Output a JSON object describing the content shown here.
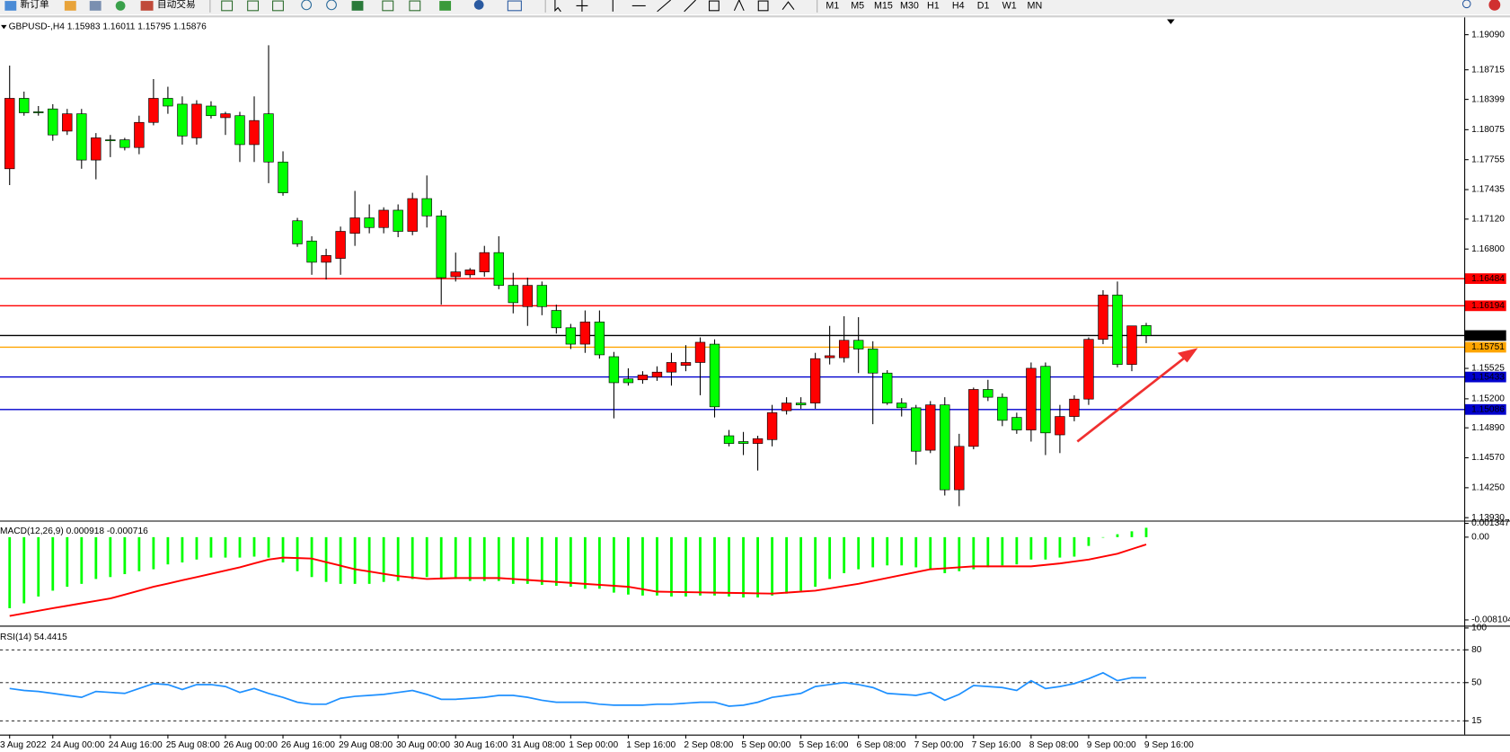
{
  "toolbar": {
    "buttons": [
      "新订单",
      "自动交易"
    ],
    "timeframes": [
      "M1",
      "M5",
      "M15",
      "M30",
      "H1",
      "H4",
      "D1",
      "W1",
      "MN"
    ]
  },
  "chart_data": [
    {
      "type": "candlestick",
      "title": "GBPUSD-,H4  1.15983 1.16011 1.15795 1.15876",
      "categories": [
        "3 Aug 2022",
        null,
        null,
        "24 Aug 00:00",
        null,
        null,
        null,
        "24 Aug 16:00",
        null,
        null,
        null,
        "25 Aug 08:00",
        null,
        null,
        null,
        "26 Aug 00:00",
        null,
        null,
        null,
        "26 Aug 16:00",
        null,
        null,
        null,
        "29 Aug 08:00",
        null,
        null,
        null,
        "30 Aug 00:00",
        null,
        null,
        null,
        "30 Aug 16:00",
        null,
        null,
        null,
        "31 Aug 08:00",
        null,
        null,
        null,
        "1 Sep 00:00",
        null,
        null,
        null,
        "1 Sep 16:00",
        null,
        null,
        null,
        "2 Sep 08:00",
        null,
        null,
        null,
        "5 Sep 00:00",
        null,
        null,
        null,
        "5 Sep 16:00",
        null,
        null,
        null,
        "6 Sep 08:00",
        null,
        null,
        null,
        "7 Sep 00:00",
        null,
        null,
        null,
        "7 Sep 16:00",
        null,
        null,
        null,
        "8 Sep 08:00",
        null,
        null,
        null,
        "9 Sep 00:00",
        null,
        null,
        null,
        "9 Sep 16:00"
      ],
      "open": [
        1.17658,
        1.1841,
        1.18266,
        1.18297,
        1.1806,
        1.18245,
        1.17751,
        1.17967,
        1.17967,
        1.17885,
        1.18153,
        1.1841,
        1.18348,
        1.17988,
        1.18328,
        1.18204,
        1.18225,
        1.17916,
        1.18245,
        1.1773,
        1.17102,
        1.16886,
        1.16659,
        1.167,
        1.16968,
        1.17133,
        1.1703,
        1.17215,
        1.16989,
        1.17339,
        1.17154,
        1.16505,
        1.16525,
        1.16556,
        1.16762,
        1.16412,
        1.16185,
        1.16412,
        1.16144,
        1.15959,
        1.15784,
        1.16021,
        1.1565,
        1.15413,
        1.15403,
        1.15433,
        1.15485,
        1.15557,
        1.15588,
        1.15784,
        1.14805,
        1.14743,
        1.14723,
        1.14764,
        1.15073,
        1.15155,
        1.15155,
        1.15639,
        1.15639,
        1.15825,
        1.15732,
        1.15475,
        1.15155,
        1.15104,
        1.14651,
        1.15135,
        1.14228,
        1.14692,
        1.153,
        1.15217,
        1.15001,
        1.14867,
        1.15547,
        1.14815,
        1.15011,
        1.15197,
        1.15835,
        1.16309,
        1.15567,
        1.15983
      ],
      "high": [
        1.1876,
        1.18482,
        1.18328,
        1.18348,
        1.18297,
        1.18297,
        1.18039,
        1.18019,
        1.17988,
        1.18225,
        1.18616,
        1.18534,
        1.18431,
        1.1839,
        1.18379,
        1.18266,
        1.18266,
        1.18431,
        1.18977,
        1.17844,
        1.17133,
        1.16937,
        1.16803,
        1.1704,
        1.17421,
        1.17277,
        1.17246,
        1.17277,
        1.17401,
        1.17586,
        1.17215,
        1.16762,
        1.16597,
        1.16834,
        1.16937,
        1.16546,
        1.16494,
        1.16453,
        1.16206,
        1.16,
        1.16144,
        1.16144,
        1.15701,
        1.15526,
        1.15495,
        1.15547,
        1.15691,
        1.15773,
        1.15856,
        1.15835,
        1.14867,
        1.14846,
        1.14805,
        1.15135,
        1.15217,
        1.15217,
        1.15691,
        1.15979,
        1.16082,
        1.16072,
        1.15815,
        1.15506,
        1.15207,
        1.15135,
        1.15176,
        1.15217,
        1.14826,
        1.1532,
        1.15403,
        1.15258,
        1.15052,
        1.15588,
        1.15588,
        1.15135,
        1.15238,
        1.15856,
        1.1636,
        1.16453,
        1.15979,
        1.16011
      ],
      "low": [
        1.17483,
        1.18225,
        1.18225,
        1.17957,
        1.18019,
        1.17658,
        1.17545,
        1.17782,
        1.17854,
        1.17813,
        1.18122,
        1.18245,
        1.17916,
        1.17916,
        1.18194,
        1.18019,
        1.1773,
        1.1773,
        1.17504,
        1.1737,
        1.16824,
        1.16525,
        1.16474,
        1.16525,
        1.16834,
        1.16968,
        1.16968,
        1.16927,
        1.16948,
        1.1703,
        1.16206,
        1.16453,
        1.16494,
        1.16505,
        1.16371,
        1.16113,
        1.15979,
        1.16093,
        1.15897,
        1.15732,
        1.15691,
        1.15629,
        1.14991,
        1.15341,
        1.15361,
        1.15392,
        1.15341,
        1.15495,
        1.15238,
        1.15001,
        1.14692,
        1.14599,
        1.14434,
        1.14692,
        1.15032,
        1.15094,
        1.15094,
        1.15567,
        1.15588,
        1.15475,
        1.14929,
        1.15135,
        1.15011,
        1.14496,
        1.1462,
        1.14167,
        1.14053,
        1.14661,
        1.15176,
        1.14908,
        1.14826,
        1.14743,
        1.14599,
        1.1462,
        1.1496,
        1.15135,
        1.15784,
        1.15536,
        1.15495,
        1.15795
      ],
      "close": [
        1.1841,
        1.18256,
        1.18256,
        1.18019,
        1.18245,
        1.17751,
        1.17988,
        1.17957,
        1.17885,
        1.18153,
        1.1841,
        1.18328,
        1.18008,
        1.18348,
        1.18225,
        1.18245,
        1.17916,
        1.18173,
        1.1773,
        1.17401,
        1.16855,
        1.16659,
        1.16731,
        1.16989,
        1.17133,
        1.1703,
        1.17215,
        1.16989,
        1.17339,
        1.17154,
        1.16494,
        1.16556,
        1.16577,
        1.16762,
        1.16412,
        1.16227,
        1.16412,
        1.16185,
        1.15959,
        1.15784,
        1.16021,
        1.1567,
        1.15372,
        1.15372,
        1.15454,
        1.15485,
        1.15588,
        1.15588,
        1.15804,
        1.15114,
        1.14723,
        1.14723,
        1.14774,
        1.15052,
        1.15155,
        1.15135,
        1.15629,
        1.1566,
        1.15825,
        1.15732,
        1.15475,
        1.15155,
        1.15104,
        1.1464,
        1.15135,
        1.14228,
        1.14692,
        1.153,
        1.15217,
        1.1497,
        1.14867,
        1.15526,
        1.14836,
        1.15011,
        1.15197,
        1.15835,
        1.16309,
        1.15567,
        1.15979,
        1.15876
      ],
      "up_color": "#ff0000",
      "down_color": "#00ff00",
      "ylim": [
        1.138987,
        1.192753
      ],
      "yticks": [
        {
          "value": 1.1909,
          "label": "1.19090"
        },
        1.18715,
        1.18399,
        1.18075,
        1.17755,
        1.17435,
        {
          "value": 1.1712,
          "label": "1.17120"
        },
        {
          "value": 1.168,
          "label": "1.16800"
        },
        1.15525,
        {
          "value": 1.152,
          "label": "1.15200"
        },
        {
          "value": 1.1489,
          "label": "1.14890"
        },
        {
          "value": 1.1457,
          "label": "1.14570"
        },
        {
          "value": 1.1425,
          "label": "1.14250"
        },
        {
          "value": 1.1393,
          "label": "1.13930"
        }
      ],
      "levels": [
        {
          "value": 1.16484,
          "color": "#ff0000"
        },
        {
          "value": 1.16194,
          "color": "#ff0000"
        },
        {
          "value": 1.15876,
          "color": "#000000"
        },
        {
          "value": 1.15751,
          "color": "#ffa500"
        },
        {
          "value": 1.15433,
          "color": "#0000cd"
        },
        {
          "value": 1.15086,
          "color": "#0000cd"
        }
      ]
    },
    {
      "type": "macd",
      "title": "MACD(12,26,9) 0.000918 -0.000716",
      "histogram": {
        "color": "#00ff00",
        "values": [
          -0.006957,
          -0.00648,
          -0.005813,
          -0.005242,
          -0.00486,
          -0.004574,
          -0.004098,
          -0.003907,
          -0.003621,
          -0.003336,
          -0.003145,
          -0.002668,
          -0.002478,
          -0.002192,
          -0.002001,
          -0.002001,
          -0.002001,
          -0.001906,
          -0.002001,
          -0.002478,
          -0.003336,
          -0.003907,
          -0.004384,
          -0.004574,
          -0.004574,
          -0.004574,
          -0.004384,
          -0.004289,
          -0.004098,
          -0.003907,
          -0.004098,
          -0.004098,
          -0.004289,
          -0.004289,
          -0.004289,
          -0.004574,
          -0.004574,
          -0.00467,
          -0.004765,
          -0.00486,
          -0.005051,
          -0.005051,
          -0.005432,
          -0.005623,
          -0.005718,
          -0.005718,
          -0.005813,
          -0.005813,
          -0.005718,
          -0.005718,
          -0.005813,
          -0.005909,
          -0.005909,
          -0.005718,
          -0.005527,
          -0.005242,
          -0.00486,
          -0.004098,
          -0.003526,
          -0.003145,
          -0.002954,
          -0.002764,
          -0.002764,
          -0.002954,
          -0.003145,
          -0.003526,
          -0.003336,
          -0.003145,
          -0.002954,
          -0.002764,
          -0.002668,
          -0.002192,
          -0.002192,
          -0.002001,
          -0.001906,
          -0.000858,
          -4e-05,
          0.000286,
          0.000572,
          0.000918
        ]
      },
      "signal": {
        "color": "#ff0000",
        "values": [
          -0.007719,
          -0.007462,
          -0.007214,
          -0.006957,
          -0.006719,
          -0.00648,
          -0.006242,
          -0.006004,
          -0.005623,
          -0.005242,
          -0.00486,
          -0.004546,
          -0.004222,
          -0.003907,
          -0.003593,
          -0.003269,
          -0.002954,
          -0.002573,
          -0.002192,
          -0.002001,
          -0.002049,
          -0.002097,
          -0.002449,
          -0.002792,
          -0.003145,
          -0.003364,
          -0.003593,
          -0.003812,
          -0.003955,
          -0.004098,
          -0.00405,
          -0.004003,
          -0.004003,
          -0.004003,
          -0.004003,
          -0.004098,
          -0.004193,
          -0.004289,
          -0.004384,
          -0.004479,
          -0.004574,
          -0.00467,
          -0.004765,
          -0.00486,
          -0.005099,
          -0.005337,
          -0.005361,
          -0.005384,
          -0.005408,
          -0.005432,
          -0.005456,
          -0.00548,
          -0.005504,
          -0.005527,
          -0.005432,
          -0.005337,
          -0.005242,
          -0.005022,
          -0.004794,
          -0.004574,
          -0.004289,
          -0.004003,
          -0.003717,
          -0.003431,
          -0.003145,
          -0.00305,
          -0.002954,
          -0.002859,
          -0.002859,
          -0.002859,
          -0.002859,
          -0.002859,
          -0.002716,
          -0.002573,
          -0.002383,
          -0.002192,
          -0.001906,
          -0.00162,
          -0.001167,
          -0.000716
        ]
      },
      "ylim": [
        -0.008672,
        0.001525
      ],
      "yticks": [
        0.001347,
        {
          "value": 0,
          "label": "0.00"
        },
        -0.008104
      ]
    },
    {
      "type": "rsi",
      "title": "RSI(14) 54.4415",
      "color": "#1e90ff",
      "values": [
        44.61,
        42.82,
        41.92,
        40.13,
        38.33,
        36.53,
        41.92,
        41.02,
        40.13,
        44.61,
        49.1,
        48.2,
        43.72,
        48.2,
        48.2,
        46.41,
        41.02,
        44.61,
        40.13,
        36.53,
        32.05,
        30.25,
        30.25,
        35.64,
        37.43,
        38.33,
        39.23,
        41.02,
        42.82,
        39.23,
        34.74,
        34.74,
        35.64,
        36.53,
        38.33,
        38.33,
        36.53,
        33.84,
        32.05,
        32.05,
        32.05,
        30.25,
        29.35,
        29.35,
        29.35,
        30.25,
        30.25,
        31.15,
        32.05,
        32.05,
        28.46,
        29.35,
        32.05,
        36.53,
        38.33,
        40.13,
        46.41,
        48.2,
        50.0,
        48.2,
        45.51,
        40.13,
        39.23,
        38.33,
        41.02,
        33.84,
        39.23,
        47.31,
        46.41,
        45.51,
        42.82,
        51.8,
        44.61,
        46.41,
        49.1,
        53.59,
        58.98,
        51.8,
        54.49,
        54.4415
      ],
      "ylim": [
        2.4,
        100.3
      ],
      "yticks": [
        100,
        80,
        50,
        15
      ],
      "levels": [
        80,
        50,
        15
      ]
    }
  ]
}
